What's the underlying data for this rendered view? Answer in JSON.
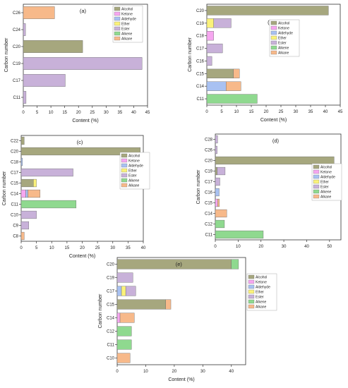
{
  "figure": {
    "legend_items": [
      {
        "name": "Alcohol",
        "color": "#a6a77e"
      },
      {
        "name": "Ketone",
        "color": "#f6a6f0"
      },
      {
        "name": "Aldehyde",
        "color": "#a8c1f2"
      },
      {
        "name": "Ether",
        "color": "#fbf27a"
      },
      {
        "name": "Ester",
        "color": "#c8b1d9"
      },
      {
        "name": "Alkene",
        "color": "#8fd98f"
      },
      {
        "name": "Alkane",
        "color": "#f7b98a"
      }
    ]
  },
  "chart_data": [
    {
      "type": "bar",
      "panel_label": "(a)",
      "xlabel": "Content (%)",
      "ylabel": "Carbon number",
      "xlim": [
        0,
        45
      ],
      "xticks": [
        0,
        5,
        10,
        15,
        20,
        25,
        30,
        35,
        40,
        45
      ],
      "categories": [
        "C11",
        "C17",
        "C19",
        "C20",
        "C24",
        "C26"
      ],
      "series": [
        {
          "name": "Alcohol",
          "values": [
            0,
            0,
            0,
            21.5,
            0,
            0
          ]
        },
        {
          "name": "Ketone",
          "values": [
            0,
            0,
            0,
            0,
            0,
            0
          ]
        },
        {
          "name": "Aldehyde",
          "values": [
            0,
            0,
            0,
            0,
            0,
            0
          ]
        },
        {
          "name": "Ether",
          "values": [
            0,
            0,
            0,
            0,
            0,
            0
          ]
        },
        {
          "name": "Ester",
          "values": [
            1.0,
            15.2,
            43.0,
            0,
            0.8,
            0
          ]
        },
        {
          "name": "Alkene",
          "values": [
            0,
            0,
            0,
            0,
            0,
            0
          ]
        },
        {
          "name": "Alkane",
          "values": [
            0,
            0,
            0,
            0,
            0,
            11.3
          ]
        }
      ],
      "legend_position": "top-right"
    },
    {
      "type": "bar",
      "panel_label": "(b)",
      "xlabel": "Content (%)",
      "ylabel": "Carbon number",
      "xlim": [
        0,
        45
      ],
      "xticks": [
        0,
        5,
        10,
        15,
        20,
        25,
        30,
        35,
        40,
        45
      ],
      "categories": [
        "C11",
        "C14",
        "C15",
        "C16",
        "C17",
        "C18",
        "C19",
        "C20"
      ],
      "series": [
        {
          "name": "Alcohol",
          "values": [
            0,
            0,
            9.0,
            0,
            0,
            0,
            0,
            41.0
          ]
        },
        {
          "name": "Ketone",
          "values": [
            0,
            0,
            0,
            0,
            0,
            2.3,
            0,
            0
          ]
        },
        {
          "name": "Aldehyde",
          "values": [
            0,
            6.5,
            0,
            0,
            0,
            0,
            0,
            0
          ]
        },
        {
          "name": "Ether",
          "values": [
            0,
            0,
            0,
            0,
            0,
            0,
            2.3,
            0
          ]
        },
        {
          "name": "Ester",
          "values": [
            0,
            0,
            0,
            1.7,
            5.3,
            0,
            5.9,
            0
          ]
        },
        {
          "name": "Alkene",
          "values": [
            17.0,
            0,
            0,
            0,
            0,
            0,
            0,
            0
          ]
        },
        {
          "name": "Alkane",
          "values": [
            0,
            5.0,
            2.0,
            0,
            0,
            0,
            0,
            0
          ]
        }
      ],
      "legend_position": "right"
    },
    {
      "type": "bar",
      "panel_label": "(c)",
      "xlabel": "Content (%)",
      "ylabel": "Carbon number",
      "xlim": [
        0,
        40
      ],
      "xticks": [
        0,
        5,
        10,
        15,
        20,
        25,
        30,
        35,
        40
      ],
      "categories": [
        "C8",
        "C9",
        "C10",
        "C11",
        "C14",
        "C15",
        "C17",
        "C18",
        "C20",
        "C22"
      ],
      "series": [
        {
          "name": "Alcohol",
          "values": [
            0,
            0,
            0,
            0,
            0,
            4.0,
            0,
            0,
            39.0,
            1.0
          ]
        },
        {
          "name": "Ketone",
          "values": [
            0,
            0,
            0,
            0,
            1.5,
            0,
            0,
            0,
            0,
            0
          ]
        },
        {
          "name": "Aldehyde",
          "values": [
            0,
            0,
            0,
            0,
            0.7,
            0,
            0,
            0.4,
            0,
            0
          ]
        },
        {
          "name": "Ether",
          "values": [
            0,
            0,
            0,
            0,
            0,
            1.0,
            0,
            0,
            0,
            0
          ]
        },
        {
          "name": "Ester",
          "values": [
            0,
            2.5,
            5.0,
            0,
            0,
            0,
            17.0,
            0,
            0,
            0
          ]
        },
        {
          "name": "Alkene",
          "values": [
            0,
            0,
            0,
            18.0,
            0,
            0,
            0,
            0,
            0,
            0
          ]
        },
        {
          "name": "Alkane",
          "values": [
            1.0,
            0,
            0,
            0,
            4.0,
            0,
            0,
            0,
            0,
            0
          ]
        }
      ],
      "legend_position": "right"
    },
    {
      "type": "bar",
      "panel_label": "(d)",
      "xlabel": "",
      "ylabel": "Carbon number",
      "xlim": [
        0,
        55
      ],
      "xticks": [
        0,
        10,
        20,
        30,
        40,
        50
      ],
      "categories": [
        "C11",
        "C12",
        "C14",
        "C15",
        "C16",
        "C17",
        "C19",
        "C20",
        "C26",
        "C28"
      ],
      "series": [
        {
          "name": "Alcohol",
          "values": [
            0,
            0,
            0,
            0,
            0,
            0,
            0.8,
            52.0,
            0,
            0
          ]
        },
        {
          "name": "Ketone",
          "values": [
            0,
            0,
            0,
            1.0,
            0,
            0,
            0,
            0,
            0,
            0
          ]
        },
        {
          "name": "Aldehyde",
          "values": [
            0,
            0,
            0,
            0,
            1.7,
            0,
            0,
            0,
            0,
            0
          ]
        },
        {
          "name": "Ether",
          "values": [
            0,
            0,
            0,
            0,
            0,
            0,
            0,
            0,
            0,
            0
          ]
        },
        {
          "name": "Ester",
          "values": [
            0,
            0,
            0,
            0,
            0,
            2.0,
            3.5,
            0,
            0.8,
            1.0
          ]
        },
        {
          "name": "Alkene",
          "values": [
            21.0,
            4.0,
            0,
            0,
            0,
            0,
            0,
            0,
            0,
            0
          ]
        },
        {
          "name": "Alkane",
          "values": [
            0,
            0,
            5.0,
            0.8,
            0,
            0,
            0,
            0,
            0,
            0
          ]
        }
      ],
      "legend_position": "right"
    },
    {
      "type": "bar",
      "panel_label": "(e)",
      "xlabel": "Content (%)",
      "ylabel": "Carbon number",
      "xlim": [
        0,
        45
      ],
      "xticks": [
        0,
        10,
        20,
        30,
        40
      ],
      "categories": [
        "C10",
        "C11",
        "C12",
        "C14",
        "C15",
        "C17",
        "C19",
        "C20"
      ],
      "series": [
        {
          "name": "Alcohol",
          "values": [
            0,
            0,
            0,
            0,
            17.0,
            0,
            0,
            40.0
          ]
        },
        {
          "name": "Ketone",
          "values": [
            0,
            0,
            0,
            1.0,
            0,
            0,
            0,
            0
          ]
        },
        {
          "name": "Aldehyde",
          "values": [
            0,
            0,
            0,
            0,
            0,
            1.5,
            0,
            0
          ]
        },
        {
          "name": "Ether",
          "values": [
            0,
            0,
            0,
            0,
            0,
            1.5,
            0,
            0
          ]
        },
        {
          "name": "Ester",
          "values": [
            0,
            0,
            0,
            0,
            0,
            3.5,
            5.5,
            0
          ]
        },
        {
          "name": "Alkene",
          "values": [
            0,
            5.0,
            5.0,
            0,
            0,
            0,
            0,
            2.5
          ]
        },
        {
          "name": "Alkane",
          "values": [
            4.5,
            0,
            0,
            5.0,
            1.8,
            0,
            0,
            0
          ]
        }
      ],
      "legend_position": "top-right"
    }
  ]
}
